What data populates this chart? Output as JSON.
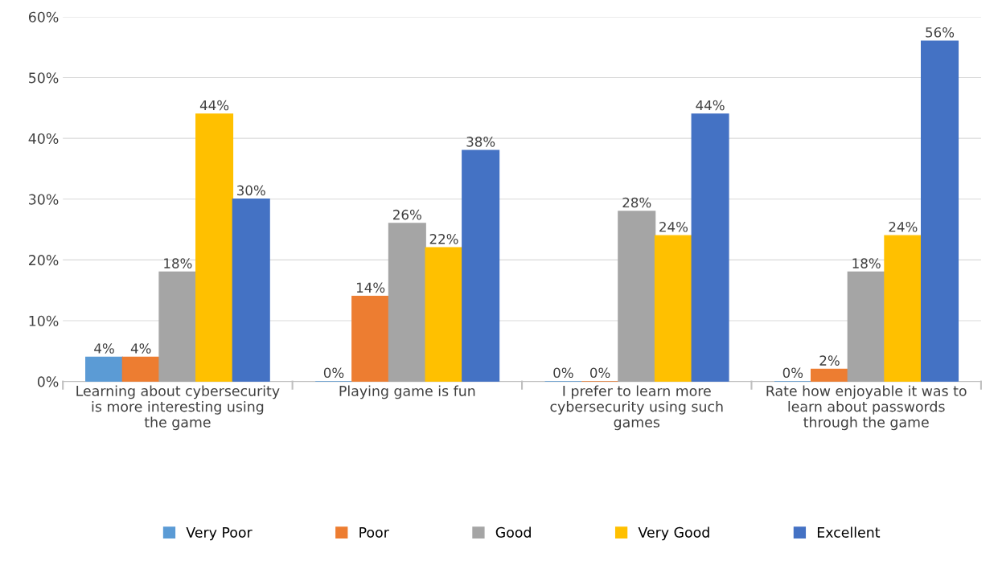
{
  "chart_data": {
    "type": "bar",
    "categories": [
      "Learning about cybersecurity is more interesting using the game",
      "Playing game is fun",
      "I prefer to learn more cybersecurity using such games",
      "Rate how enjoyable it was to learn about passwords through the game"
    ],
    "series": [
      {
        "name": "Very Poor",
        "color": "#5b9bd5",
        "values": [
          4,
          0,
          0,
          0
        ],
        "value_labels": [
          "4%",
          "0%",
          "0%",
          "0%"
        ]
      },
      {
        "name": "Poor",
        "color": "#ed7d31",
        "values": [
          4,
          14,
          0,
          2
        ],
        "value_labels": [
          "4%",
          "14%",
          "0%",
          "2%"
        ]
      },
      {
        "name": "Good",
        "color": "#a5a5a5",
        "values": [
          18,
          26,
          28,
          18
        ],
        "value_labels": [
          "18%",
          "26%",
          "28%",
          "18%"
        ]
      },
      {
        "name": "Very Good",
        "color": "#ffc000",
        "values": [
          44,
          22,
          24,
          24
        ],
        "value_labels": [
          "44%",
          "22%",
          "24%",
          "24%"
        ]
      },
      {
        "name": "Excellent",
        "color": "#4472c4",
        "values": [
          30,
          38,
          44,
          56
        ],
        "value_labels": [
          "30%",
          "38%",
          "44%",
          "56%"
        ]
      }
    ],
    "ylim": [
      0,
      60
    ],
    "yticks": [
      {
        "value": 0,
        "label": "0%"
      },
      {
        "value": 10,
        "label": "10%"
      },
      {
        "value": 20,
        "label": "20%"
      },
      {
        "value": 30,
        "label": "30%"
      },
      {
        "value": 40,
        "label": "40%"
      },
      {
        "value": 50,
        "label": "50%"
      },
      {
        "value": 60,
        "label": "60%"
      }
    ],
    "grid": "y",
    "legend": "bottom"
  }
}
